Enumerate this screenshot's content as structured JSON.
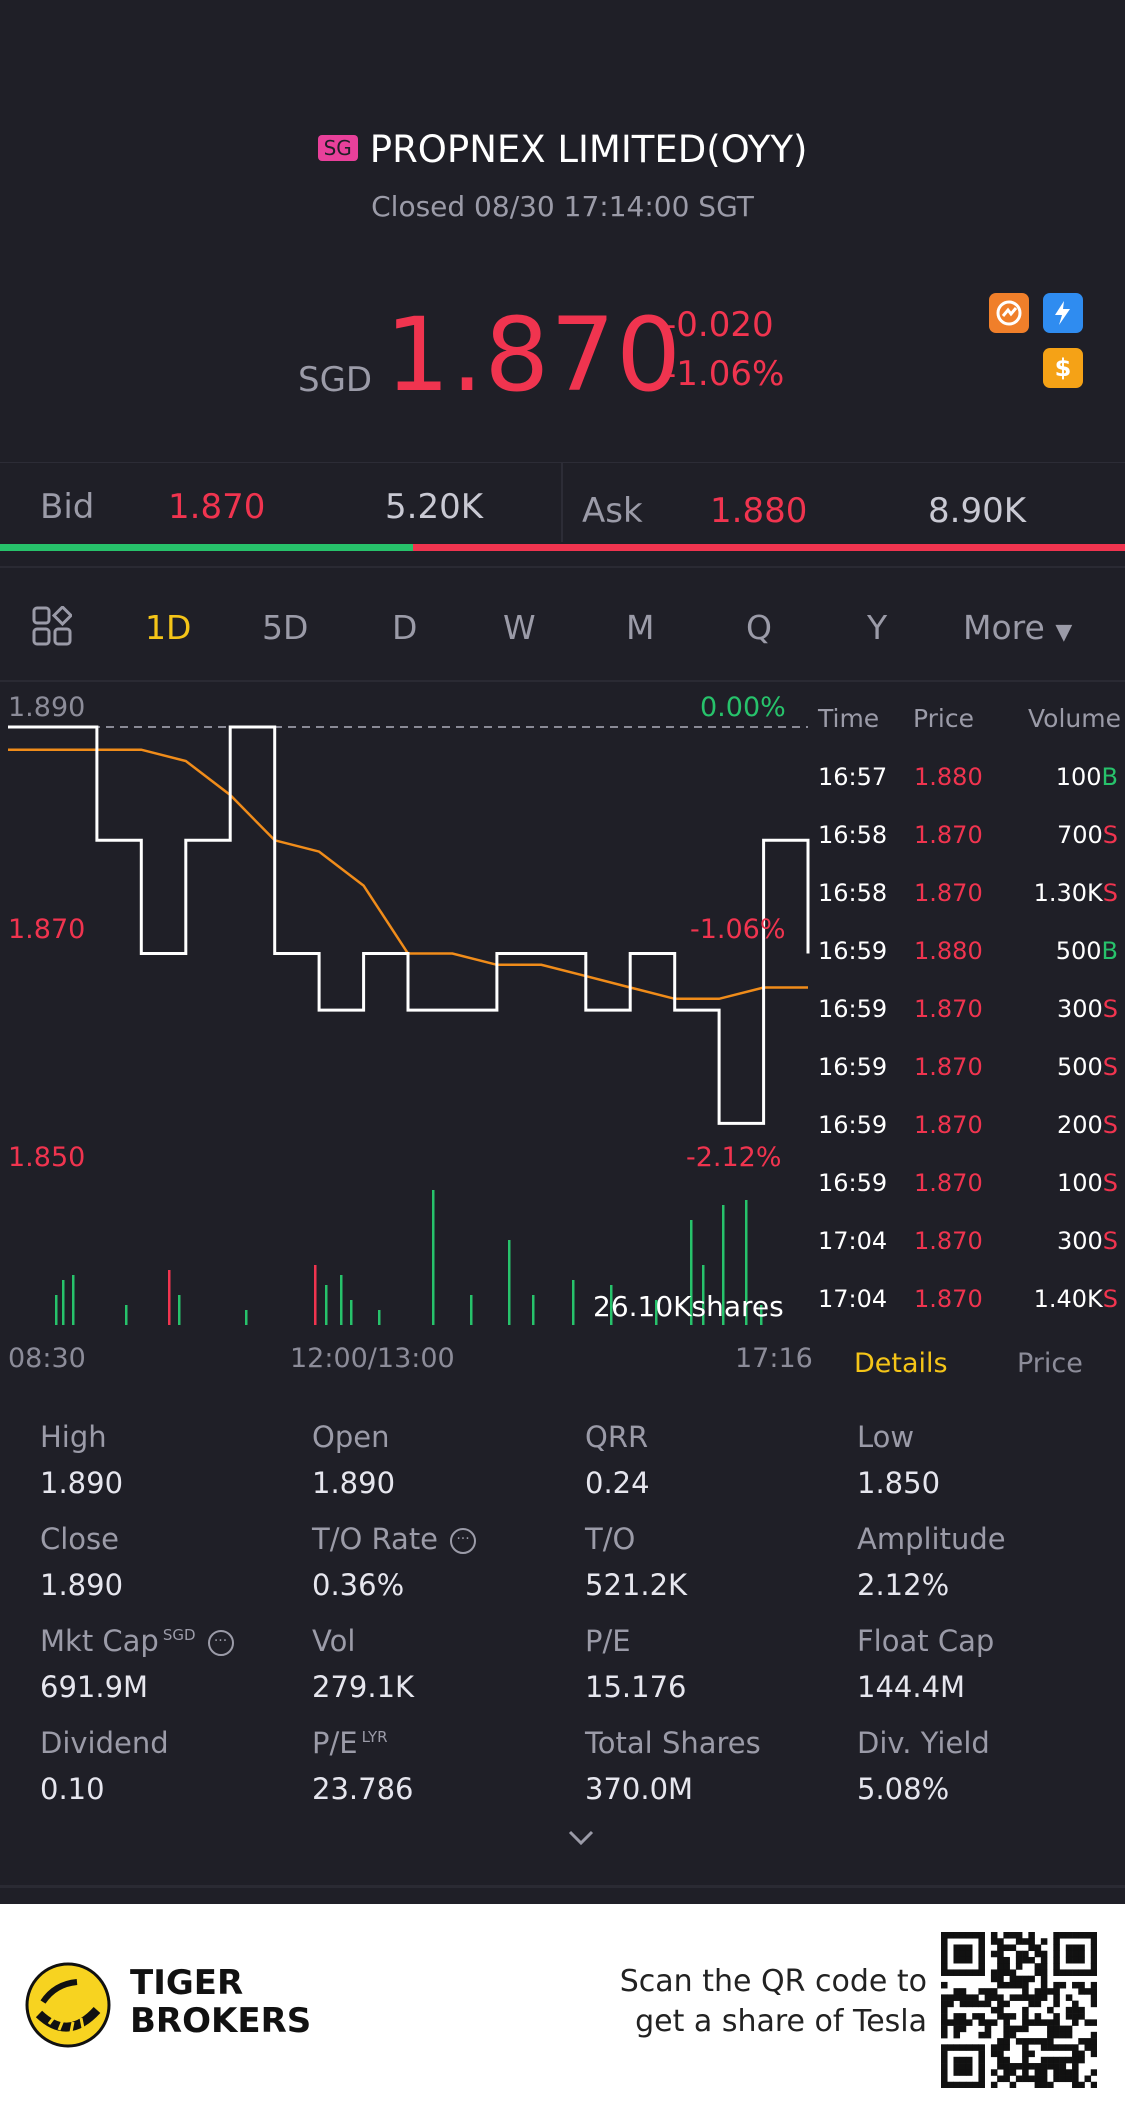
{
  "header": {
    "market_badge": "SG",
    "title": "PROPNEX LIMITED(OYY)",
    "status": "Closed 08/30 17:14:00 SGT"
  },
  "quote": {
    "currency": "SGD",
    "price": "1.870",
    "change": "-0.020",
    "change_pct": "-1.06%"
  },
  "icons": [
    "gauge-icon",
    "flash-icon",
    "dollar-icon"
  ],
  "bid": {
    "label": "Bid",
    "price": "1.870",
    "size": "5.20K"
  },
  "ask": {
    "label": "Ask",
    "price": "1.880",
    "size": "8.90K"
  },
  "bid_ratio": 0.367,
  "tabs": [
    "1D",
    "5D",
    "D",
    "W",
    "M",
    "Q",
    "Y",
    "More"
  ],
  "active_tab": "1D",
  "chart": {
    "y_top": "1.890",
    "y_mid": "1.870",
    "y_low": "1.850",
    "pct_top": "0.00%",
    "pct_mid": "-1.06%",
    "pct_low": "-2.12%",
    "x_start": "08:30",
    "x_mid": "12:00/13:00",
    "x_end": "17:16",
    "volume_label": "26.10Kshares"
  },
  "chart_data": {
    "type": "line",
    "ylim": [
      1.85,
      1.89
    ],
    "x_ticks": [
      "08:30",
      "12:00/13:00",
      "17:16"
    ],
    "series": [
      {
        "values": [
          1.888,
          1.888,
          1.888,
          1.888,
          1.887,
          1.884,
          1.88,
          1.879,
          1.876,
          1.87,
          1.87,
          1.869,
          1.869,
          1.868,
          1.867,
          1.866,
          1.866,
          1.867,
          1.867
        ]
      },
      {
        "values": [
          1.89,
          1.89,
          1.88,
          1.87,
          1.88,
          1.89,
          1.87,
          1.865,
          1.87,
          1.865,
          1.865,
          1.87,
          1.87,
          1.865,
          1.87,
          1.865,
          1.855,
          1.88,
          1.87
        ]
      }
    ]
  },
  "trades": {
    "headers": [
      "Time",
      "Price",
      "Volume"
    ],
    "rows": [
      {
        "time": "16:57",
        "price": "1.880",
        "vol": "100",
        "side": "B"
      },
      {
        "time": "16:58",
        "price": "1.870",
        "vol": "700",
        "side": "S"
      },
      {
        "time": "16:58",
        "price": "1.870",
        "vol": "1.30K",
        "side": "S"
      },
      {
        "time": "16:59",
        "price": "1.880",
        "vol": "500",
        "side": "B"
      },
      {
        "time": "16:59",
        "price": "1.870",
        "vol": "300",
        "side": "S"
      },
      {
        "time": "16:59",
        "price": "1.870",
        "vol": "500",
        "side": "S"
      },
      {
        "time": "16:59",
        "price": "1.870",
        "vol": "200",
        "side": "S"
      },
      {
        "time": "16:59",
        "price": "1.870",
        "vol": "100",
        "side": "S"
      },
      {
        "time": "17:04",
        "price": "1.870",
        "vol": "300",
        "side": "S"
      },
      {
        "time": "17:04",
        "price": "1.870",
        "vol": "1.40K",
        "side": "S"
      }
    ],
    "tab_details": "Details",
    "tab_price": "Price"
  },
  "stats": [
    {
      "label": "High",
      "value": "1.890"
    },
    {
      "label": "Open",
      "value": "1.890"
    },
    {
      "label": "QRR",
      "value": "0.24"
    },
    {
      "label": "Low",
      "value": "1.850"
    },
    {
      "label": "Close",
      "value": "1.890"
    },
    {
      "label": "T/O Rate",
      "value": "0.36%"
    },
    {
      "label": "T/O",
      "value": "521.2K"
    },
    {
      "label": "Amplitude",
      "value": "2.12%"
    },
    {
      "label": "Mkt Cap",
      "value": "691.9M",
      "sup": "SGD"
    },
    {
      "label": "Vol",
      "value": "279.1K"
    },
    {
      "label": "P/E",
      "value": "15.176"
    },
    {
      "label": "Float Cap",
      "value": "144.4M"
    },
    {
      "label": "Dividend",
      "value": "0.10"
    },
    {
      "label": "P/E",
      "value": "23.786",
      "sup": "LYR"
    },
    {
      "label": "Total Shares",
      "value": "370.0M"
    },
    {
      "label": "Div. Yield",
      "value": "5.08%"
    }
  ],
  "footer": {
    "brand_line1": "TIGER",
    "brand_line2": "BROKERS",
    "cta_line1": "Scan the QR code to",
    "cta_line2": "get a share of Tesla"
  }
}
